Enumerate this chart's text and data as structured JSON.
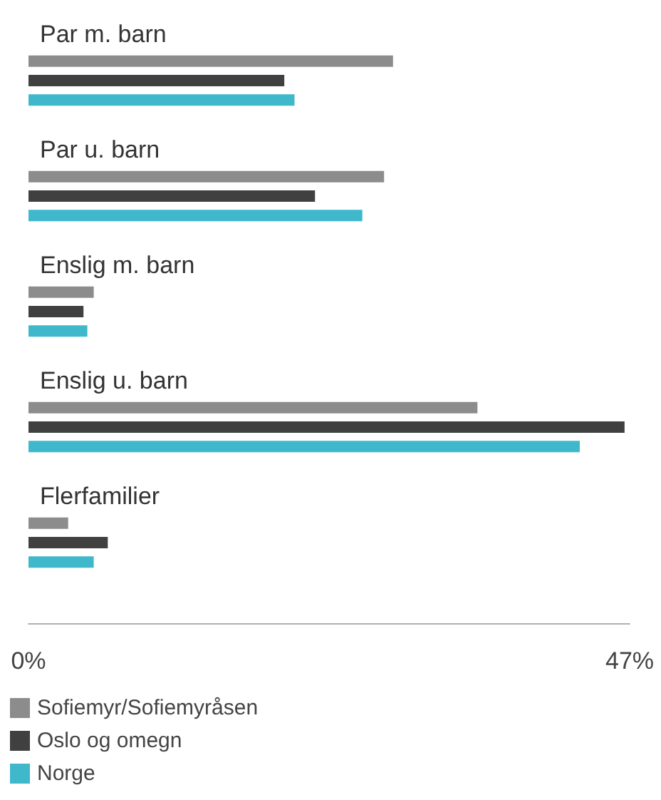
{
  "chart_data": {
    "type": "bar",
    "orientation": "horizontal",
    "categories": [
      "Par m. barn",
      "Par u. barn",
      "Enslig m. barn",
      "Enslig u. barn",
      "Flerfamilier"
    ],
    "series": [
      {
        "name": "Sofiemyr/Sofiemyråsen",
        "color": "#8c8c8c",
        "values": [
          28.5,
          27.8,
          5.1,
          35.1,
          3.1
        ]
      },
      {
        "name": "Oslo og omegn",
        "color": "#404040",
        "values": [
          20.0,
          22.4,
          4.3,
          46.6,
          6.2
        ]
      },
      {
        "name": "Norge",
        "color": "#3fb8cc",
        "values": [
          20.8,
          26.1,
          4.6,
          43.1,
          5.1
        ]
      }
    ],
    "xlim": [
      0,
      47
    ],
    "xticks": [
      {
        "value": 0,
        "label": "0%"
      },
      {
        "value": 47,
        "label": "47%"
      }
    ],
    "grid": false,
    "legend": "bottom left"
  }
}
